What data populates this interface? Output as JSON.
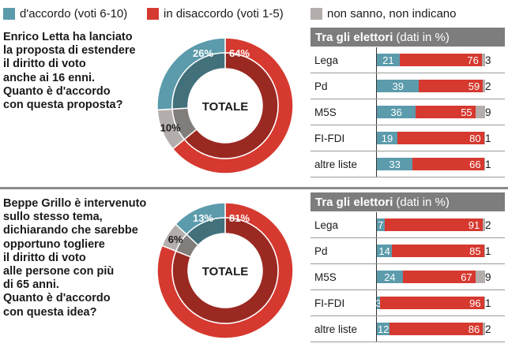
{
  "legend": {
    "agree": "d'accordo (voti 6-10)",
    "disagree": "in disaccordo (voti 1-5)",
    "dk": "non sanno, non indicano"
  },
  "colors": {
    "agree": "#5b9bab",
    "disagree": "#d6392f",
    "dk": "#b3adab"
  },
  "q1": {
    "question_lines": [
      "Enrico Letta ha lanciato",
      "la proposta di estendere",
      "il diritto di voto",
      "anche ai 16 enni.",
      "Quanto è d'accordo",
      "con questa proposta?"
    ],
    "center_label": "TOTALE",
    "slice_labels": {
      "agree": "26%",
      "disagree": "64%",
      "dk": "10%"
    },
    "table_title": "Tra gli elettori",
    "table_subtitle": "(dati in %)"
  },
  "q2": {
    "question_lines": [
      "Beppe Grillo è intervenuto",
      "sullo stesso tema,",
      "dichiarando che sarebbe",
      "opportuno togliere",
      "il diritto di voto",
      "alle persone con più",
      "di 65 anni.",
      "Quanto è d'accordo",
      "con questa idea?"
    ],
    "center_label": "TOTALE",
    "slice_labels": {
      "agree": "13%",
      "disagree": "81%",
      "dk": "6%"
    },
    "table_title": "Tra gli elettori",
    "table_subtitle": "(dati in %)"
  },
  "chart_data": [
    {
      "type": "pie",
      "categories": [
        "d'accordo (voti 6-10)",
        "in disaccordo (voti 1-5)",
        "non sanno, non indicano"
      ],
      "values": [
        26,
        64,
        10
      ],
      "title": "TOTALE"
    },
    {
      "type": "bar",
      "categories": [
        "Lega",
        "Pd",
        "M5S",
        "FI-FDI",
        "altre liste"
      ],
      "series": [
        {
          "name": "d'accordo (voti 6-10)",
          "values": [
            21,
            39,
            36,
            19,
            33
          ]
        },
        {
          "name": "in disaccordo (voti 1-5)",
          "values": [
            76,
            59,
            55,
            80,
            66
          ]
        },
        {
          "name": "non sanno, non indicano",
          "values": [
            3,
            2,
            9,
            1,
            1
          ]
        }
      ],
      "title": "Tra gli elettori (dati in %)",
      "stacked": true
    },
    {
      "type": "pie",
      "categories": [
        "d'accordo (voti 6-10)",
        "in disaccordo (voti 1-5)",
        "non sanno, non indicano"
      ],
      "values": [
        13,
        81,
        6
      ],
      "title": "TOTALE"
    },
    {
      "type": "bar",
      "categories": [
        "Lega",
        "Pd",
        "M5S",
        "FI-FDI",
        "altre liste"
      ],
      "series": [
        {
          "name": "d'accordo (voti 6-10)",
          "values": [
            7,
            14,
            24,
            3,
            12
          ]
        },
        {
          "name": "in disaccordo (voti 1-5)",
          "values": [
            91,
            85,
            67,
            96,
            86
          ]
        },
        {
          "name": "non sanno, non indicano",
          "values": [
            2,
            1,
            9,
            1,
            2
          ]
        }
      ],
      "title": "Tra gli elettori (dati in %)",
      "stacked": true
    }
  ]
}
